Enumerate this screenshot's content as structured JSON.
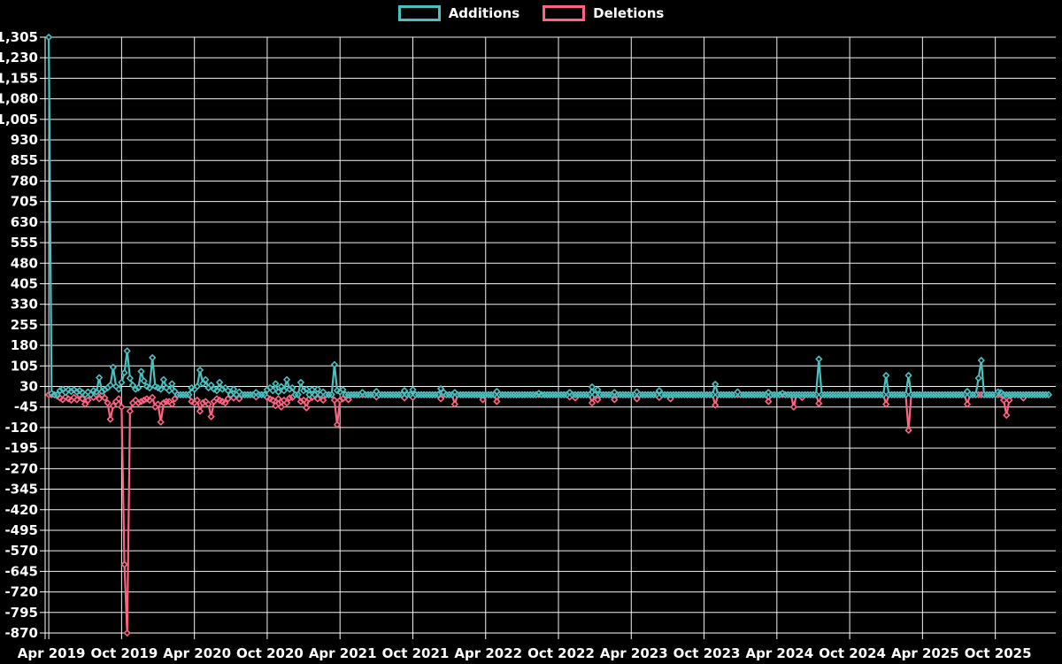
{
  "legend": {
    "items": [
      {
        "label": "Additions",
        "color": "#4bc0c0"
      },
      {
        "label": "Deletions",
        "color": "#ff6384"
      }
    ]
  },
  "chart_data": {
    "type": "line",
    "title": "",
    "xlabel": "",
    "ylabel": "",
    "grid": true,
    "legend_position": "top",
    "background": "#000000",
    "grid_color": "#f2f2f2",
    "axis_color": "#ffffff",
    "text_color": "#ffffff",
    "marker_style": "hollow-diamond",
    "x_unit": "weeks since Apr 2019",
    "x_tick_labels": [
      "Apr 2019",
      "Oct 2019",
      "Apr 2020",
      "Oct 2020",
      "Apr 2021",
      "Oct 2021",
      "Apr 2022",
      "Oct 2022",
      "Apr 2023",
      "Oct 2023",
      "Apr 2024",
      "Oct 2024",
      "Apr 2025",
      "Oct 2025"
    ],
    "x_tick_weeks": [
      0,
      26,
      52,
      78,
      104,
      130,
      156,
      182,
      208,
      234,
      260,
      286,
      312,
      338
    ],
    "x_domain_weeks": [
      -1.3,
      359.6
    ],
    "y_domain": [
      -870,
      1305
    ],
    "y_ticks": [
      1305,
      1230,
      1155,
      1080,
      1005,
      930,
      855,
      780,
      705,
      630,
      555,
      480,
      405,
      330,
      255,
      180,
      105,
      30,
      -45,
      -120,
      -195,
      -270,
      -345,
      -420,
      -495,
      -570,
      -645,
      -720,
      -795,
      -870
    ],
    "week_range": [
      0,
      357
    ],
    "default_value": 0,
    "series": [
      {
        "name": "Deletions",
        "color": "#ff6384",
        "points": [
          [
            3,
            -5
          ],
          [
            4,
            -12
          ],
          [
            5,
            -18
          ],
          [
            6,
            -8
          ],
          [
            7,
            -15
          ],
          [
            8,
            -20
          ],
          [
            9,
            -10
          ],
          [
            10,
            -18
          ],
          [
            12,
            -15
          ],
          [
            13,
            -35
          ],
          [
            14,
            -20
          ],
          [
            16,
            -10
          ],
          [
            18,
            -15
          ],
          [
            20,
            -12
          ],
          [
            21,
            -30
          ],
          [
            22,
            -90
          ],
          [
            23,
            -40
          ],
          [
            24,
            -25
          ],
          [
            25,
            -15
          ],
          [
            26,
            -45
          ],
          [
            27,
            -620
          ],
          [
            28,
            -870
          ],
          [
            29,
            -60
          ],
          [
            30,
            -30
          ],
          [
            31,
            -20
          ],
          [
            32,
            -30
          ],
          [
            33,
            -25
          ],
          [
            34,
            -20
          ],
          [
            35,
            -15
          ],
          [
            36,
            -20
          ],
          [
            37,
            -10
          ],
          [
            38,
            -45
          ],
          [
            39,
            -35
          ],
          [
            40,
            -100
          ],
          [
            41,
            -30
          ],
          [
            42,
            -25
          ],
          [
            43,
            -25
          ],
          [
            44,
            -35
          ],
          [
            45,
            -15
          ],
          [
            51,
            -25
          ],
          [
            52,
            -30
          ],
          [
            53,
            -20
          ],
          [
            54,
            -60
          ],
          [
            55,
            -30
          ],
          [
            56,
            -25
          ],
          [
            57,
            -35
          ],
          [
            58,
            -80
          ],
          [
            59,
            -25
          ],
          [
            60,
            -15
          ],
          [
            61,
            -20
          ],
          [
            62,
            -25
          ],
          [
            63,
            -30
          ],
          [
            64,
            -15
          ],
          [
            66,
            -12
          ],
          [
            68,
            -15
          ],
          [
            74,
            -8
          ],
          [
            78,
            -10
          ],
          [
            79,
            -15
          ],
          [
            80,
            -20
          ],
          [
            81,
            -40
          ],
          [
            82,
            -15
          ],
          [
            83,
            -45
          ],
          [
            84,
            -20
          ],
          [
            85,
            -30
          ],
          [
            86,
            -12
          ],
          [
            87,
            -10
          ],
          [
            90,
            -25
          ],
          [
            91,
            -20
          ],
          [
            92,
            -48
          ],
          [
            93,
            -15
          ],
          [
            94,
            -10
          ],
          [
            96,
            -15
          ],
          [
            98,
            -20
          ],
          [
            102,
            -20
          ],
          [
            103,
            -110
          ],
          [
            104,
            -20
          ],
          [
            105,
            -15
          ],
          [
            107,
            -18
          ],
          [
            117,
            -8
          ],
          [
            127,
            -12
          ],
          [
            130,
            -10
          ],
          [
            140,
            -15
          ],
          [
            145,
            -35
          ],
          [
            155,
            -18
          ],
          [
            160,
            -25
          ],
          [
            186,
            -8
          ],
          [
            188,
            -12
          ],
          [
            194,
            -30
          ],
          [
            196,
            -18
          ],
          [
            202,
            -18
          ],
          [
            210,
            -15
          ],
          [
            218,
            -10
          ],
          [
            222,
            -15
          ],
          [
            238,
            -38
          ],
          [
            257,
            -25
          ],
          [
            266,
            -45
          ],
          [
            269,
            -10
          ],
          [
            275,
            -32
          ],
          [
            299,
            -35
          ],
          [
            307,
            -130
          ],
          [
            328,
            -35
          ],
          [
            341,
            -20
          ],
          [
            342,
            -75
          ],
          [
            343,
            -20
          ],
          [
            348,
            -12
          ]
        ]
      },
      {
        "name": "Additions",
        "color": "#4bc0c0",
        "points": [
          [
            0,
            1305
          ],
          [
            1,
            5
          ],
          [
            4,
            15
          ],
          [
            5,
            20
          ],
          [
            6,
            8
          ],
          [
            7,
            18
          ],
          [
            8,
            12
          ],
          [
            9,
            18
          ],
          [
            10,
            10
          ],
          [
            11,
            15
          ],
          [
            12,
            8
          ],
          [
            14,
            10
          ],
          [
            16,
            15
          ],
          [
            17,
            10
          ],
          [
            18,
            62
          ],
          [
            19,
            12
          ],
          [
            20,
            18
          ],
          [
            21,
            25
          ],
          [
            22,
            35
          ],
          [
            23,
            100
          ],
          [
            24,
            30
          ],
          [
            25,
            20
          ],
          [
            26,
            45
          ],
          [
            27,
            80
          ],
          [
            28,
            160
          ],
          [
            29,
            60
          ],
          [
            30,
            35
          ],
          [
            31,
            20
          ],
          [
            32,
            25
          ],
          [
            33,
            85
          ],
          [
            34,
            50
          ],
          [
            35,
            30
          ],
          [
            36,
            25
          ],
          [
            37,
            135
          ],
          [
            38,
            30
          ],
          [
            39,
            25
          ],
          [
            40,
            20
          ],
          [
            41,
            55
          ],
          [
            42,
            25
          ],
          [
            43,
            15
          ],
          [
            44,
            40
          ],
          [
            45,
            12
          ],
          [
            51,
            25
          ],
          [
            52,
            20
          ],
          [
            53,
            30
          ],
          [
            54,
            90
          ],
          [
            55,
            40
          ],
          [
            56,
            55
          ],
          [
            57,
            25
          ],
          [
            58,
            35
          ],
          [
            59,
            20
          ],
          [
            60,
            15
          ],
          [
            61,
            45
          ],
          [
            62,
            20
          ],
          [
            63,
            25
          ],
          [
            64,
            15
          ],
          [
            66,
            20
          ],
          [
            68,
            10
          ],
          [
            74,
            8
          ],
          [
            78,
            18
          ],
          [
            79,
            25
          ],
          [
            80,
            15
          ],
          [
            81,
            40
          ],
          [
            82,
            10
          ],
          [
            83,
            30
          ],
          [
            84,
            15
          ],
          [
            85,
            55
          ],
          [
            86,
            20
          ],
          [
            87,
            25
          ],
          [
            90,
            45
          ],
          [
            91,
            15
          ],
          [
            92,
            20
          ],
          [
            94,
            18
          ],
          [
            96,
            20
          ],
          [
            98,
            10
          ],
          [
            102,
            110
          ],
          [
            103,
            15
          ],
          [
            104,
            10
          ],
          [
            105,
            18
          ],
          [
            112,
            8
          ],
          [
            117,
            12
          ],
          [
            127,
            15
          ],
          [
            130,
            18
          ],
          [
            140,
            22
          ],
          [
            141,
            8
          ],
          [
            145,
            8
          ],
          [
            160,
            12
          ],
          [
            175,
            5
          ],
          [
            186,
            8
          ],
          [
            194,
            28
          ],
          [
            196,
            18
          ],
          [
            202,
            8
          ],
          [
            210,
            10
          ],
          [
            218,
            15
          ],
          [
            238,
            38
          ],
          [
            246,
            10
          ],
          [
            257,
            8
          ],
          [
            262,
            5
          ],
          [
            275,
            130
          ],
          [
            299,
            70
          ],
          [
            307,
            70
          ],
          [
            328,
            12
          ],
          [
            332,
            60
          ],
          [
            333,
            125
          ],
          [
            339,
            10
          ],
          [
            340,
            8
          ]
        ]
      }
    ]
  }
}
